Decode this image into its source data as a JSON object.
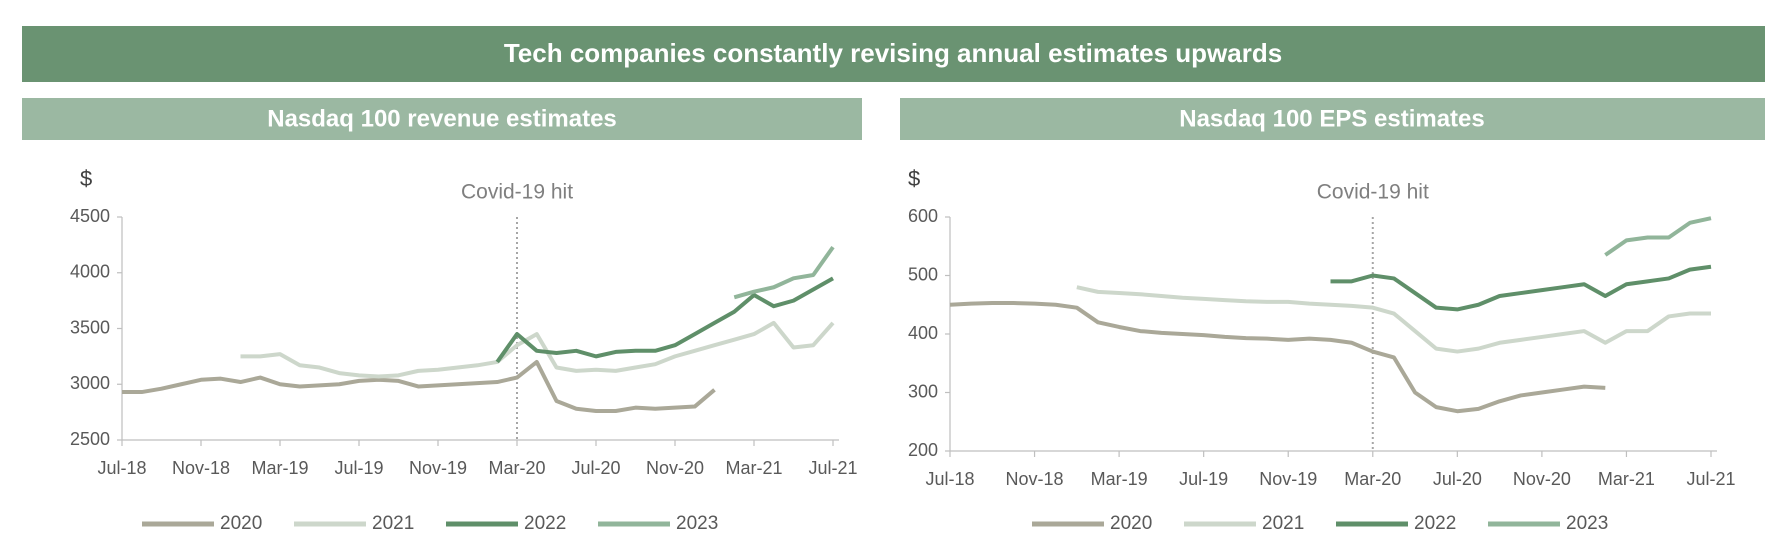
{
  "title": "Tech companies constantly revising annual estimates upwards",
  "chart_data": [
    {
      "type": "line",
      "title": "Nasdaq 100 revenue estimates",
      "ylabel": "$",
      "annotation": "Covid-19 hit",
      "annotation_at": "Mar-20",
      "categories": [
        "Jul-18",
        null,
        null,
        null,
        "Nov-18",
        null,
        null,
        null,
        "Mar-19",
        null,
        null,
        null,
        "Jul-19",
        null,
        null,
        null,
        "Nov-19",
        null,
        null,
        null,
        "Mar-20",
        null,
        null,
        null,
        "Jul-20",
        null,
        null,
        null,
        "Nov-20",
        null,
        null,
        null,
        "Mar-21",
        null,
        null,
        null,
        "Jul-21"
      ],
      "ylim": [
        2500,
        4500
      ],
      "yticks": [
        2500,
        3000,
        3500,
        4000,
        4500
      ],
      "series": [
        {
          "name": "2020",
          "color": "#aaa898",
          "values": [
            2930,
            2930,
            2960,
            3000,
            3040,
            3050,
            3020,
            3060,
            3000,
            2980,
            2990,
            3000,
            3030,
            3040,
            3030,
            2980,
            2990,
            3000,
            3010,
            3020,
            3060,
            3200,
            2850,
            2780,
            2760,
            2760,
            2790,
            2780,
            2790,
            2800,
            2950,
            null,
            null,
            null,
            null,
            null,
            null
          ]
        },
        {
          "name": "2021",
          "color": "#cdd7cb",
          "values": [
            null,
            null,
            null,
            null,
            null,
            null,
            3250,
            3250,
            3270,
            3170,
            3150,
            3100,
            3080,
            3070,
            3080,
            3120,
            3130,
            3150,
            3170,
            3200,
            3350,
            3450,
            3150,
            3120,
            3130,
            3120,
            3150,
            3180,
            3250,
            3300,
            3350,
            3400,
            3450,
            3550,
            3330,
            3350,
            3550
          ]
        },
        {
          "name": "2022",
          "color": "#5f8f69",
          "values": [
            null,
            null,
            null,
            null,
            null,
            null,
            null,
            null,
            null,
            null,
            null,
            null,
            null,
            null,
            null,
            null,
            null,
            null,
            null,
            3200,
            3450,
            3300,
            3280,
            3300,
            3250,
            3290,
            3300,
            3300,
            3350,
            3450,
            3550,
            3650,
            3800,
            3700,
            3750,
            3850,
            3950
          ]
        },
        {
          "name": "2023",
          "color": "#91b59a",
          "values": [
            null,
            null,
            null,
            null,
            null,
            null,
            null,
            null,
            null,
            null,
            null,
            null,
            null,
            null,
            null,
            null,
            null,
            null,
            null,
            null,
            null,
            null,
            null,
            null,
            null,
            null,
            null,
            null,
            null,
            null,
            null,
            3780,
            3830,
            3870,
            3950,
            3980,
            4230
          ]
        }
      ]
    },
    {
      "type": "line",
      "title": "Nasdaq 100 EPS estimates",
      "ylabel": "$",
      "annotation": "Covid-19 hit",
      "annotation_at": "Mar-20",
      "categories": [
        "Jul-18",
        null,
        null,
        null,
        "Nov-18",
        null,
        null,
        null,
        "Mar-19",
        null,
        null,
        null,
        "Jul-19",
        null,
        null,
        null,
        "Nov-19",
        null,
        null,
        null,
        "Mar-20",
        null,
        null,
        null,
        "Jul-20",
        null,
        null,
        null,
        "Nov-20",
        null,
        null,
        null,
        "Mar-21",
        null,
        null,
        null,
        "Jul-21"
      ],
      "ylim": [
        200,
        600
      ],
      "yticks": [
        200,
        300,
        400,
        500,
        600
      ],
      "series": [
        {
          "name": "2020",
          "color": "#aaa898",
          "values": [
            450,
            452,
            453,
            453,
            452,
            450,
            445,
            420,
            412,
            405,
            402,
            400,
            398,
            395,
            393,
            392,
            390,
            392,
            390,
            385,
            370,
            360,
            300,
            275,
            268,
            272,
            285,
            295,
            300,
            305,
            310,
            308,
            null,
            null,
            null,
            null,
            null
          ]
        },
        {
          "name": "2021",
          "color": "#cdd7cb",
          "values": [
            null,
            null,
            null,
            null,
            null,
            null,
            480,
            472,
            470,
            468,
            465,
            462,
            460,
            458,
            456,
            455,
            455,
            452,
            450,
            448,
            445,
            435,
            405,
            375,
            370,
            375,
            385,
            390,
            395,
            400,
            405,
            385,
            405,
            405,
            430,
            435,
            435
          ]
        },
        {
          "name": "2022",
          "color": "#5f8f69",
          "values": [
            null,
            null,
            null,
            null,
            null,
            null,
            null,
            null,
            null,
            null,
            null,
            null,
            null,
            null,
            null,
            null,
            null,
            null,
            490,
            490,
            500,
            495,
            470,
            445,
            442,
            450,
            465,
            470,
            475,
            480,
            485,
            465,
            485,
            490,
            495,
            510,
            515
          ]
        },
        {
          "name": "2023",
          "color": "#91b59a",
          "values": [
            null,
            null,
            null,
            null,
            null,
            null,
            null,
            null,
            null,
            null,
            null,
            null,
            null,
            null,
            null,
            null,
            null,
            null,
            null,
            null,
            null,
            null,
            null,
            null,
            null,
            null,
            null,
            null,
            null,
            null,
            null,
            535,
            560,
            565,
            565,
            590,
            598
          ]
        }
      ]
    }
  ]
}
